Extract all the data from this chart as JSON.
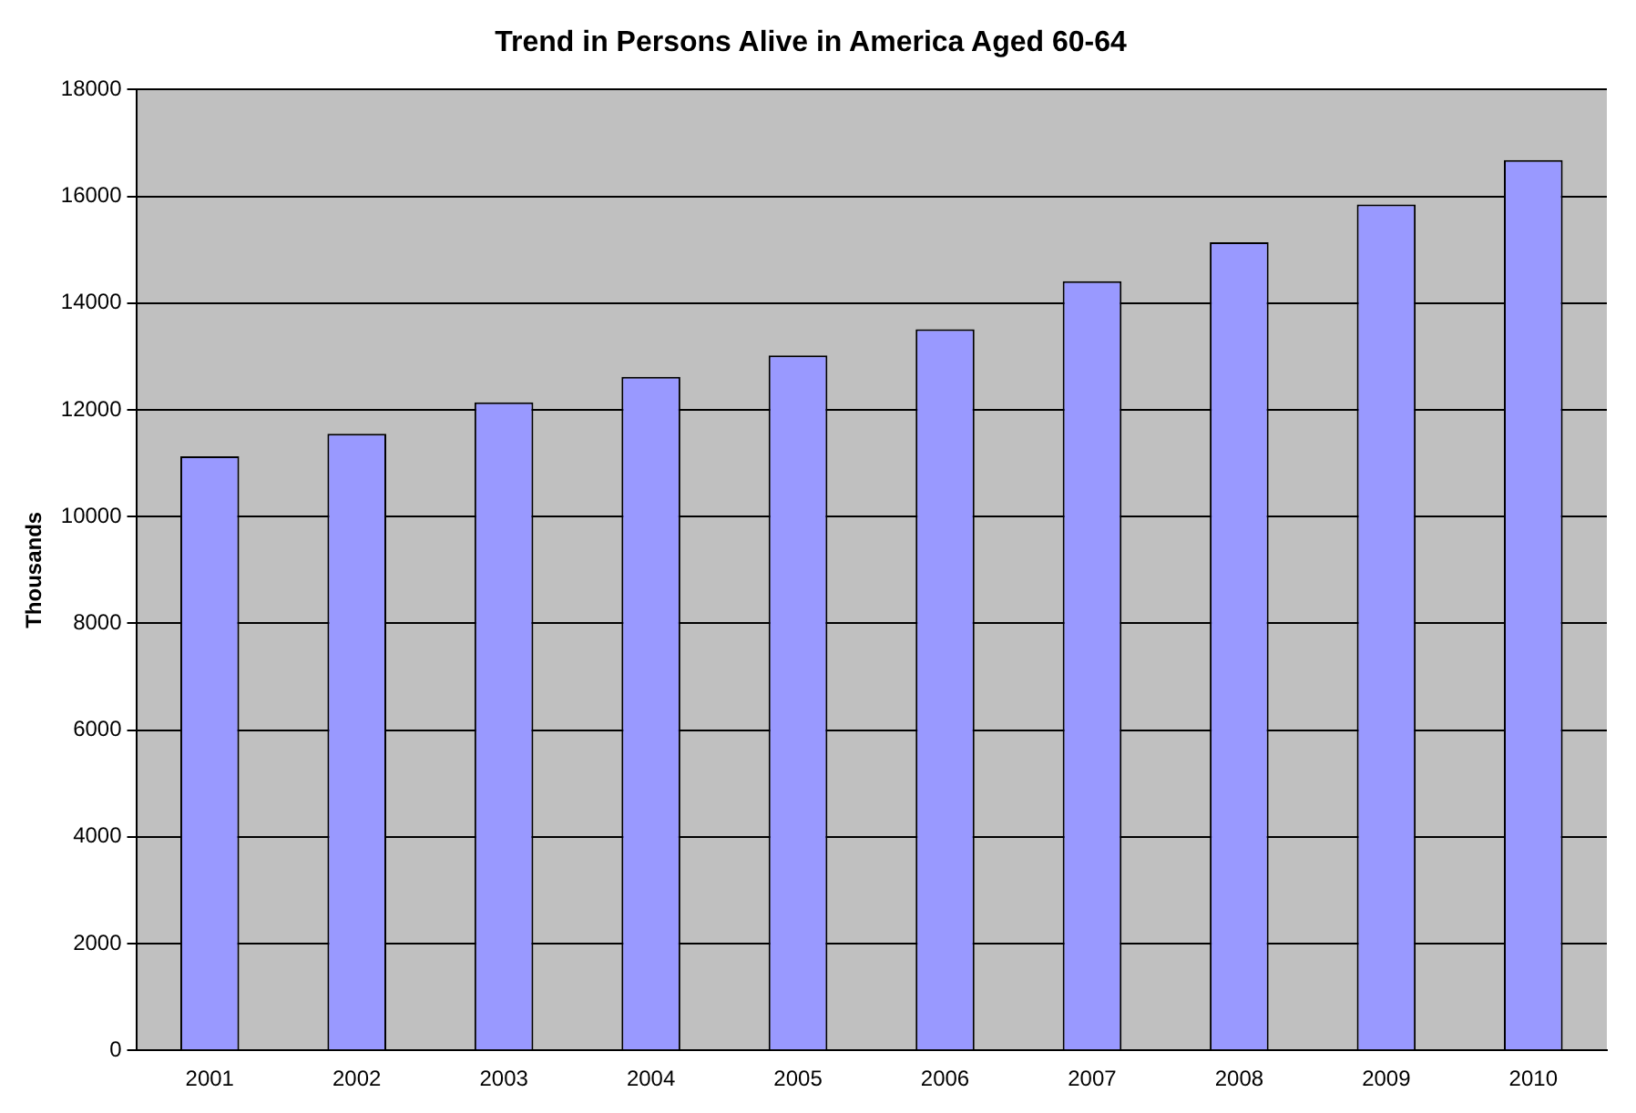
{
  "chart_data": {
    "type": "bar",
    "title": "Trend in Persons Alive in America Aged 60-64",
    "ylabel": "Thousands",
    "categories": [
      "2001",
      "2002",
      "2003",
      "2004",
      "2005",
      "2006",
      "2007",
      "2008",
      "2009",
      "2010"
    ],
    "values": [
      11130,
      11550,
      12140,
      12620,
      13020,
      13510,
      14410,
      15140,
      15850,
      16680
    ],
    "color": "#9999ff",
    "ylim": [
      0,
      18000
    ],
    "yticks": [
      0,
      2000,
      4000,
      6000,
      8000,
      10000,
      12000,
      14000,
      16000,
      18000
    ],
    "grid": "y",
    "legend": false
  }
}
